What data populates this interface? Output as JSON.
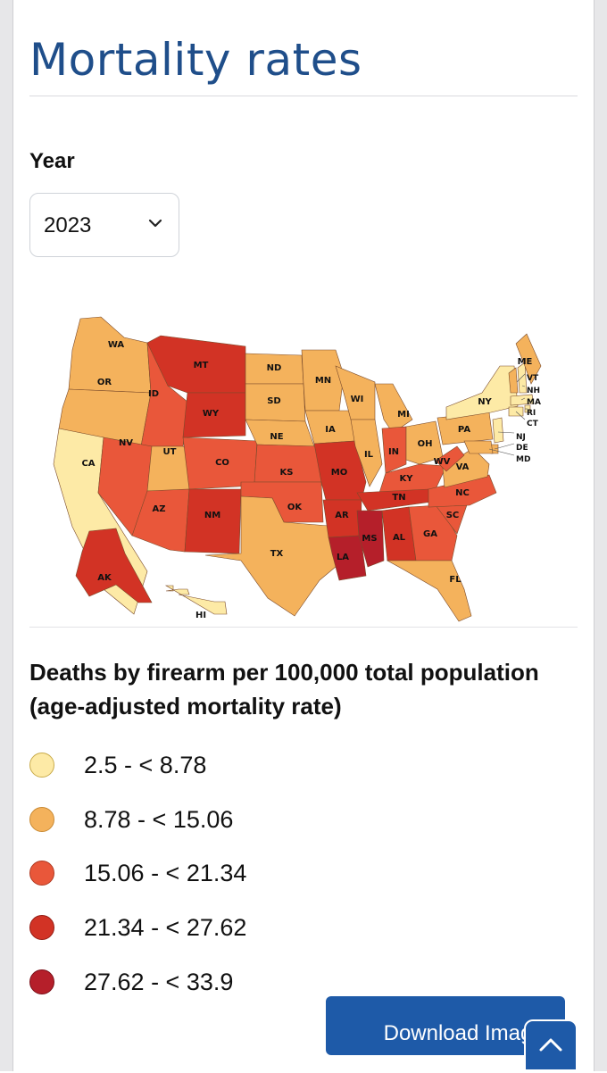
{
  "page": {
    "title": "Mortality rates"
  },
  "year_filter": {
    "label": "Year",
    "selected": "2023"
  },
  "legend": {
    "title": "Deaths by firearm per 100,000 total population (age-adjusted mortality rate)",
    "bins": [
      {
        "label": "2.5 - < 8.78",
        "color": "#fdeaa6",
        "border": "#c9ab4a"
      },
      {
        "label": "8.78 - < 15.06",
        "color": "#f4b25c",
        "border": "#c98a34"
      },
      {
        "label": "15.06 - < 21.34",
        "color": "#e9573a",
        "border": "#b03a22"
      },
      {
        "label": "21.34 - < 27.62",
        "color": "#d23325",
        "border": "#951d14"
      },
      {
        "label": "27.62 - < 33.9",
        "color": "#b51f2a",
        "border": "#7a0f18"
      }
    ]
  },
  "map": {
    "states": [
      {
        "abbr": "WA",
        "bin": 1
      },
      {
        "abbr": "OR",
        "bin": 1
      },
      {
        "abbr": "CA",
        "bin": 0
      },
      {
        "abbr": "ID",
        "bin": 2
      },
      {
        "abbr": "NV",
        "bin": 2
      },
      {
        "abbr": "UT",
        "bin": 1
      },
      {
        "abbr": "AZ",
        "bin": 2
      },
      {
        "abbr": "MT",
        "bin": 3
      },
      {
        "abbr": "WY",
        "bin": 3
      },
      {
        "abbr": "CO",
        "bin": 2
      },
      {
        "abbr": "NM",
        "bin": 3
      },
      {
        "abbr": "ND",
        "bin": 1
      },
      {
        "abbr": "SD",
        "bin": 1
      },
      {
        "abbr": "NE",
        "bin": 1
      },
      {
        "abbr": "KS",
        "bin": 2
      },
      {
        "abbr": "OK",
        "bin": 2
      },
      {
        "abbr": "TX",
        "bin": 1
      },
      {
        "abbr": "MN",
        "bin": 1
      },
      {
        "abbr": "IA",
        "bin": 1
      },
      {
        "abbr": "MO",
        "bin": 3
      },
      {
        "abbr": "AR",
        "bin": 3
      },
      {
        "abbr": "LA",
        "bin": 4
      },
      {
        "abbr": "WI",
        "bin": 1
      },
      {
        "abbr": "IL",
        "bin": 1
      },
      {
        "abbr": "MI",
        "bin": 1
      },
      {
        "abbr": "IN",
        "bin": 2
      },
      {
        "abbr": "OH",
        "bin": 1
      },
      {
        "abbr": "KY",
        "bin": 2
      },
      {
        "abbr": "TN",
        "bin": 3
      },
      {
        "abbr": "MS",
        "bin": 4
      },
      {
        "abbr": "AL",
        "bin": 3
      },
      {
        "abbr": "GA",
        "bin": 2
      },
      {
        "abbr": "FL",
        "bin": 1
      },
      {
        "abbr": "SC",
        "bin": 2
      },
      {
        "abbr": "NC",
        "bin": 2
      },
      {
        "abbr": "VA",
        "bin": 1
      },
      {
        "abbr": "WV",
        "bin": 2
      },
      {
        "abbr": "PA",
        "bin": 1
      },
      {
        "abbr": "NY",
        "bin": 0
      },
      {
        "abbr": "VT",
        "bin": 1
      },
      {
        "abbr": "NH",
        "bin": 0
      },
      {
        "abbr": "ME",
        "bin": 1
      },
      {
        "abbr": "MA",
        "bin": 0
      },
      {
        "abbr": "RI",
        "bin": 0
      },
      {
        "abbr": "CT",
        "bin": 0
      },
      {
        "abbr": "NJ",
        "bin": 0
      },
      {
        "abbr": "DE",
        "bin": 1
      },
      {
        "abbr": "MD",
        "bin": 1
      },
      {
        "abbr": "AK",
        "bin": 3
      },
      {
        "abbr": "HI",
        "bin": 0
      }
    ]
  },
  "actions": {
    "download_label": "Download Imag",
    "scroll_top_icon": "chevron-up-icon"
  }
}
